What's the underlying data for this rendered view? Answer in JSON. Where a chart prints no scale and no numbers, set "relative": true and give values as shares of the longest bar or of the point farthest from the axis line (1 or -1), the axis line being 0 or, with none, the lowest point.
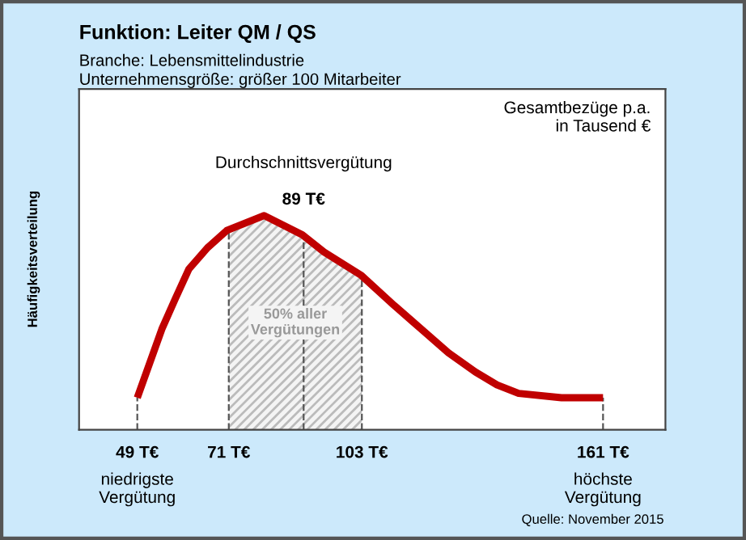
{
  "chart_data": {
    "type": "line",
    "title": "Funktion: Leiter QM / QS",
    "subtitle": "Branche: Lebensmittelindustrie\nUnternehmensgröße: größer 100 Mitarbeiter",
    "ylabel": "Häufigkeitsverteilung",
    "relative": true,
    "x": [
      49,
      54.9,
      58.1,
      61.4,
      65.9,
      70.5,
      79.5,
      88.7,
      93.9,
      102.9,
      110.8,
      117.3,
      123.8,
      130.3,
      135.5,
      140.7,
      151,
      161
    ],
    "series": [
      {
        "color": "#c00000",
        "values": [
          0.15,
          0.47,
          0.61,
          0.75,
          0.85,
          0.93,
          1.0,
          0.91,
          0.83,
          0.72,
          0.58,
          0.47,
          0.36,
          0.27,
          0.21,
          0.17,
          0.15,
          0.15
        ]
      }
    ],
    "xlim": [
      35,
      176
    ],
    "xticks": [
      {
        "value": 49,
        "label": "49 T€"
      },
      {
        "value": 71,
        "label": "71 T€"
      },
      {
        "value": 103,
        "label": "103 T€"
      },
      {
        "value": 161,
        "label": "161 T€"
      }
    ],
    "tick_labels": "x",
    "grid": false,
    "marker": "none",
    "line_style": "solid",
    "bands": [
      {
        "axis": "x",
        "from": 71,
        "to": 103,
        "label": "50% aller\nVergütungen",
        "color": "#bbbbbb"
      }
    ],
    "ref_lines": [
      {
        "axis": "x",
        "value": 49,
        "line_style": "dashed"
      },
      {
        "axis": "x",
        "value": 71,
        "line_style": "dashed"
      },
      {
        "axis": "x",
        "value": 89,
        "label": "89 T€",
        "line_style": "dashed"
      },
      {
        "axis": "x",
        "value": 103,
        "line_style": "dashed"
      },
      {
        "axis": "x",
        "value": 161,
        "line_style": "dashed"
      }
    ],
    "annotations": [
      "Durchschnittsvergütung",
      "niedrigste\nVergütung",
      "höchste\nVergütung",
      "Gesamtbezüge p.a.\nin Tausend €",
      "Quelle: November 2015"
    ]
  }
}
